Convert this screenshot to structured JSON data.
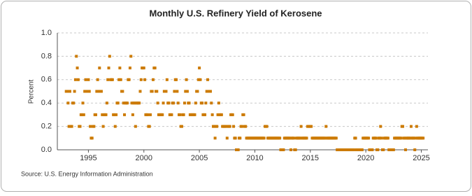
{
  "chart_data": {
    "type": "scatter",
    "title": "Monthly U.S. Refinery Yield of Kerosene",
    "y_label": "Percent",
    "source": "Source: U.S. Energy Information Administration",
    "color": "#cc7a00",
    "grid": true,
    "xlim": [
      1992.2,
      2025.6
    ],
    "xticks": [
      1995,
      2000,
      2005,
      2010,
      2015,
      2020,
      2025
    ],
    "ylim": [
      0,
      1
    ],
    "yticks": [
      {
        "value": 0,
        "label": "0.0"
      },
      {
        "value": 0.2,
        "label": "0.2"
      },
      {
        "value": 0.4,
        "label": "0.4"
      },
      {
        "value": 0.6,
        "label": "0.6"
      },
      {
        "value": 0.8,
        "label": "0.8"
      },
      {
        "value": 1,
        "label": "1.0"
      }
    ],
    "series": [
      {
        "name": "Kerosene",
        "color": "#cc7a00",
        "x": [
          1993,
          1993.083,
          1993.167,
          1993.25,
          1993.333,
          1993.417,
          1993.5,
          1993.583,
          1993.667,
          1993.75,
          1993.833,
          1993.917,
          1994,
          1994.083,
          1994.167,
          1994.25,
          1994.333,
          1994.417,
          1994.5,
          1994.583,
          1994.667,
          1994.75,
          1994.833,
          1994.917,
          1995,
          1995.083,
          1995.167,
          1995.25,
          1995.333,
          1995.417,
          1995.5,
          1995.583,
          1995.667,
          1995.75,
          1995.833,
          1995.917,
          1996,
          1996.083,
          1996.167,
          1996.25,
          1996.333,
          1996.417,
          1996.5,
          1996.583,
          1996.667,
          1996.75,
          1996.833,
          1996.917,
          1997,
          1997.083,
          1997.167,
          1997.25,
          1997.333,
          1997.417,
          1997.5,
          1997.583,
          1997.667,
          1997.75,
          1997.833,
          1997.917,
          1998,
          1998.083,
          1998.167,
          1998.25,
          1998.333,
          1998.417,
          1998.5,
          1998.583,
          1998.667,
          1998.75,
          1998.833,
          1998.917,
          1999,
          1999.083,
          1999.167,
          1999.25,
          1999.333,
          1999.417,
          1999.5,
          1999.583,
          1999.667,
          1999.75,
          1999.833,
          1999.917,
          2000,
          2000.083,
          2000.167,
          2000.25,
          2000.333,
          2000.417,
          2000.5,
          2000.583,
          2000.667,
          2000.75,
          2000.833,
          2000.917,
          2001,
          2001.083,
          2001.167,
          2001.25,
          2001.333,
          2001.417,
          2001.5,
          2001.583,
          2001.667,
          2001.75,
          2001.833,
          2001.917,
          2002,
          2002.083,
          2002.167,
          2002.25,
          2002.333,
          2002.417,
          2002.5,
          2002.583,
          2002.667,
          2002.75,
          2002.833,
          2002.917,
          2003,
          2003.083,
          2003.167,
          2003.25,
          2003.333,
          2003.417,
          2003.5,
          2003.583,
          2003.667,
          2003.75,
          2003.833,
          2003.917,
          2004,
          2004.083,
          2004.167,
          2004.25,
          2004.333,
          2004.417,
          2004.5,
          2004.583,
          2004.667,
          2004.75,
          2004.833,
          2004.917,
          2005,
          2005.083,
          2005.167,
          2005.25,
          2005.333,
          2005.417,
          2005.5,
          2005.583,
          2005.667,
          2005.75,
          2005.833,
          2005.917,
          2006,
          2006.083,
          2006.167,
          2006.25,
          2006.333,
          2006.417,
          2006.5,
          2006.583,
          2006.667,
          2006.75,
          2006.833,
          2006.917,
          2007,
          2007.083,
          2007.167,
          2007.25,
          2007.333,
          2007.417,
          2007.5,
          2007.583,
          2007.667,
          2007.75,
          2007.833,
          2007.917,
          2008,
          2008.083,
          2008.167,
          2008.25,
          2008.333,
          2008.417,
          2008.5,
          2008.583,
          2008.667,
          2008.75,
          2008.833,
          2008.917,
          2009,
          2009.083,
          2009.167,
          2009.25,
          2009.333,
          2009.417,
          2009.5,
          2009.583,
          2009.667,
          2009.75,
          2009.833,
          2009.917,
          2010,
          2010.083,
          2010.167,
          2010.25,
          2010.333,
          2010.417,
          2010.5,
          2010.583,
          2010.667,
          2010.75,
          2010.833,
          2010.917,
          2011,
          2011.083,
          2011.167,
          2011.25,
          2011.333,
          2011.417,
          2011.5,
          2011.583,
          2011.667,
          2011.75,
          2011.833,
          2011.917,
          2012,
          2012.083,
          2012.167,
          2012.25,
          2012.333,
          2012.417,
          2012.5,
          2012.583,
          2012.667,
          2012.75,
          2012.833,
          2012.917,
          2013,
          2013.083,
          2013.167,
          2013.25,
          2013.333,
          2013.417,
          2013.5,
          2013.583,
          2013.667,
          2013.75,
          2013.833,
          2013.917,
          2014,
          2014.083,
          2014.167,
          2014.25,
          2014.333,
          2014.417,
          2014.5,
          2014.583,
          2014.667,
          2014.75,
          2014.833,
          2014.917,
          2015,
          2015.083,
          2015.167,
          2015.25,
          2015.333,
          2015.417,
          2015.5,
          2015.583,
          2015.667,
          2015.75,
          2015.833,
          2015.917,
          2016,
          2016.083,
          2016.167,
          2016.25,
          2016.333,
          2016.417,
          2016.5,
          2016.583,
          2016.667,
          2016.75,
          2016.833,
          2016.917,
          2017,
          2017.083,
          2017.167,
          2017.25,
          2017.333,
          2017.417,
          2017.5,
          2017.583,
          2017.667,
          2017.75,
          2017.833,
          2017.917,
          2018,
          2018.083,
          2018.167,
          2018.25,
          2018.333,
          2018.417,
          2018.5,
          2018.583,
          2018.667,
          2018.75,
          2018.833,
          2018.917,
          2019,
          2019.083,
          2019.167,
          2019.25,
          2019.333,
          2019.417,
          2019.5,
          2019.583,
          2019.667,
          2019.75,
          2019.833,
          2019.917,
          2020,
          2020.083,
          2020.167,
          2020.25,
          2020.333,
          2020.417,
          2020.5,
          2020.583,
          2020.667,
          2020.75,
          2020.833,
          2020.917,
          2021,
          2021.083,
          2021.167,
          2021.25,
          2021.333,
          2021.417,
          2021.5,
          2021.583,
          2021.667,
          2021.75,
          2021.833,
          2021.917,
          2022,
          2022.083,
          2022.167,
          2022.25,
          2022.333,
          2022.417,
          2022.5,
          2022.583,
          2022.667,
          2022.75,
          2022.833,
          2022.917,
          2023,
          2023.083,
          2023.167,
          2023.25,
          2023.333,
          2023.417,
          2023.5,
          2023.583,
          2023.667,
          2023.75,
          2023.833,
          2023.917,
          2024,
          2024.083,
          2024.167,
          2024.25,
          2024.333,
          2024.417,
          2024.5,
          2024.583,
          2024.667,
          2024.75,
          2024.833,
          2024.917,
          2025,
          2025.083,
          2025.167
        ],
        "values": [
          0.5,
          0.5,
          0.4,
          0.2,
          0.5,
          0.2,
          0.2,
          0.4,
          0.4,
          0.5,
          0.6,
          0.8,
          0.7,
          0.6,
          0.2,
          0.2,
          0.3,
          0.3,
          0.4,
          0.3,
          0.5,
          0.6,
          0.5,
          0.5,
          0.6,
          0.5,
          0.2,
          0.1,
          0.1,
          0.2,
          0.2,
          0.3,
          0.3,
          0.5,
          0.6,
          0.5,
          0.7,
          0.5,
          0.5,
          0.3,
          0.2,
          0.3,
          0.3,
          0.3,
          0.4,
          0.6,
          0.7,
          0.8,
          0.6,
          0.6,
          0.6,
          0.3,
          0.3,
          0.2,
          0.3,
          0.4,
          0.4,
          0.6,
          0.7,
          0.6,
          0.5,
          0.5,
          0.4,
          0.3,
          0.4,
          0.4,
          0.4,
          0.6,
          0.6,
          0.7,
          0.8,
          0.4,
          0.3,
          0.4,
          0.4,
          0.2,
          0.4,
          0.4,
          0.4,
          0.4,
          0.5,
          0.6,
          0.7,
          0.7,
          0.7,
          0.6,
          0.3,
          0.3,
          0.3,
          0.2,
          0.2,
          0.3,
          0.5,
          0.5,
          0.6,
          0.7,
          0.7,
          0.5,
          0.5,
          0.4,
          0.3,
          0.3,
          0.3,
          0.3,
          0.3,
          0.4,
          0.5,
          0.5,
          0.5,
          0.6,
          0.4,
          0.4,
          0.3,
          0.3,
          0.3,
          0.4,
          0.4,
          0.5,
          0.6,
          0.6,
          0.5,
          0.4,
          0.3,
          0.3,
          0.2,
          0.2,
          0.3,
          0.3,
          0.4,
          0.5,
          0.6,
          0.5,
          0.4,
          0.4,
          0.3,
          0.3,
          0.3,
          0.3,
          0.3,
          0.3,
          0.4,
          0.5,
          0.5,
          0.6,
          0.7,
          0.6,
          0.4,
          0.4,
          0.3,
          0.3,
          0.3,
          0.4,
          0.5,
          0.6,
          0.5,
          0.5,
          0.5,
          0.4,
          0.3,
          0.2,
          0.2,
          0.1,
          0.2,
          0.2,
          0.3,
          0.4,
          0.3,
          0.3,
          0.3,
          0.2,
          0.2,
          0.2,
          0.2,
          0.2,
          0.1,
          0.2,
          0.2,
          0.2,
          0.3,
          0.3,
          0.3,
          0.2,
          0.1,
          0.1,
          0,
          0,
          0,
          0.1,
          0.1,
          0.2,
          0.2,
          0.3,
          0.3,
          0.2,
          0.2,
          0.1,
          0.1,
          0.1,
          0.1,
          0.1,
          0.1,
          0.1,
          0.1,
          0.1,
          0.1,
          0.1,
          0.1,
          0.1,
          0.1,
          0.1,
          0.1,
          0.1,
          0.1,
          0.1,
          0.1,
          0.2,
          0.2,
          0.2,
          0.1,
          0.1,
          0.1,
          0.1,
          0.1,
          0.1,
          0.1,
          0.1,
          0.1,
          0.1,
          0.1,
          0.1,
          0.1,
          0.1,
          0,
          0,
          0,
          0,
          0.1,
          0.1,
          0.1,
          0.1,
          0.1,
          0.1,
          0.1,
          0,
          0.1,
          0.1,
          0.1,
          0,
          0,
          0.1,
          0.1,
          0.1,
          0.1,
          0.1,
          0.2,
          0.1,
          0.1,
          0.1,
          0.1,
          0.1,
          0.1,
          0.2,
          0.2,
          0.2,
          0.2,
          0.2,
          0.1,
          0.1,
          0.1,
          0.1,
          0.1,
          0.1,
          0.1,
          0.1,
          0.1,
          0.1,
          0.1,
          0.1,
          0.1,
          0.1,
          0.1,
          0.2,
          0.1,
          0.1,
          0.1,
          0.1,
          0.1,
          0.1,
          0.1,
          0.1,
          0.1,
          0.1,
          0.1,
          0,
          0,
          0,
          0,
          0,
          0,
          0,
          0,
          0,
          0,
          0,
          0,
          0,
          0,
          0,
          0,
          0,
          0,
          0,
          0.1,
          0.1,
          0,
          0,
          0,
          0,
          0,
          0,
          0,
          0.1,
          0.1,
          0.1,
          0.1,
          0.1,
          0.1,
          0.1,
          0,
          0,
          0,
          0,
          0.1,
          0.1,
          0.1,
          0.1,
          0,
          0,
          0.1,
          0.1,
          0.2,
          0.1,
          0,
          0,
          0.1,
          0.1,
          0.1,
          0.1,
          0.1,
          0,
          0,
          0,
          0,
          0,
          0,
          0.1,
          0.1,
          0.1,
          0.1,
          0.1,
          0.1,
          0.1,
          0.1,
          0.2,
          0.2,
          0.1,
          0.1,
          0,
          0.1,
          0.1,
          0.1,
          0.1,
          0.1,
          0.2,
          0.1,
          0.1,
          0.1,
          0,
          0.1,
          0.2,
          0.1,
          0.1,
          0.1,
          0.1,
          0.1,
          0.1,
          0.1
        ]
      }
    ]
  }
}
